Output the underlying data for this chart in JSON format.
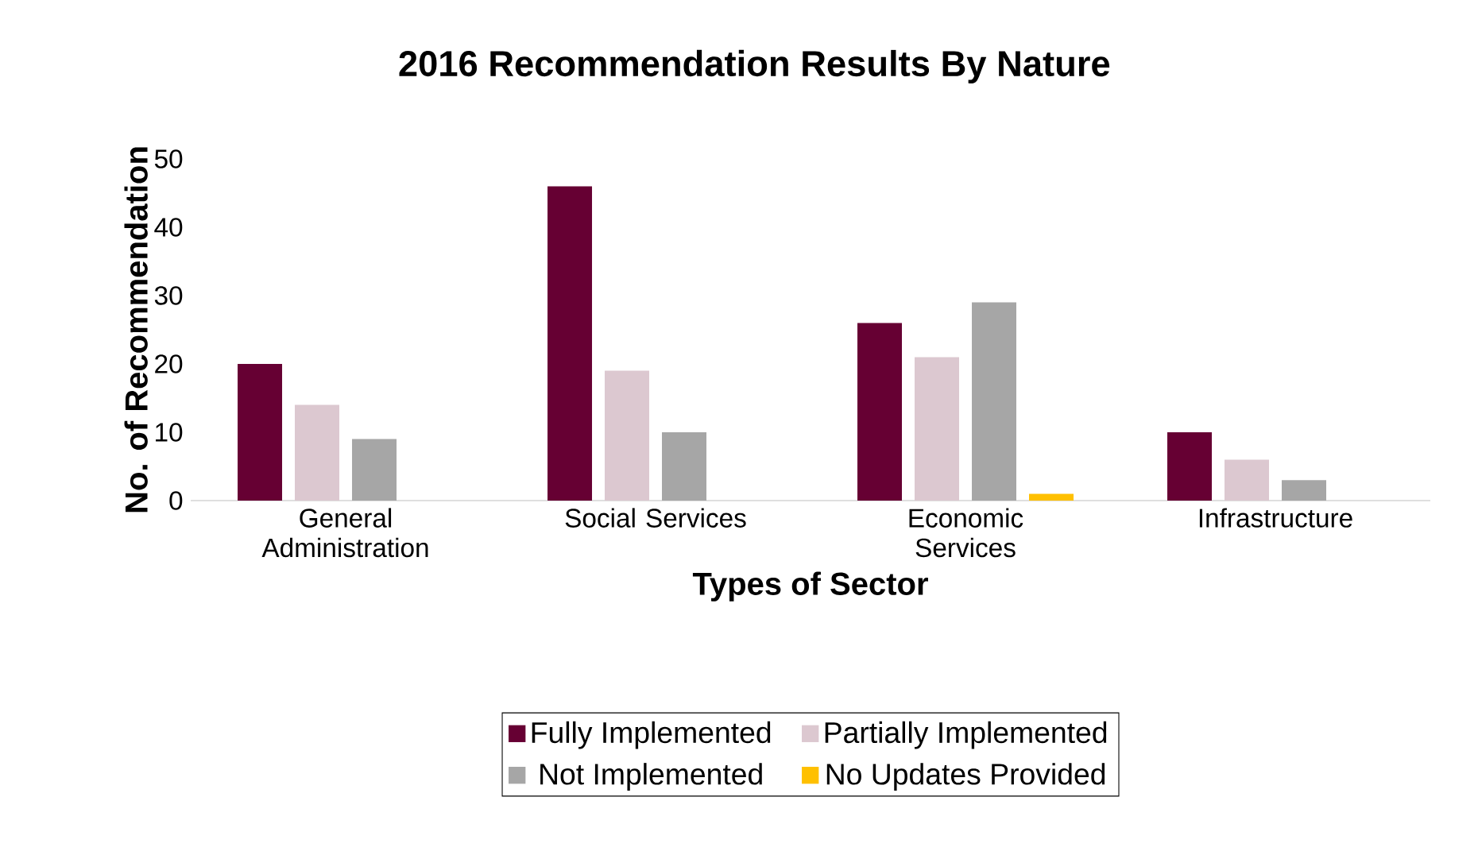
{
  "chart_data": {
    "type": "bar",
    "title": "2016 Recommendation Results By Nature",
    "xlabel": "Types of Sector",
    "ylabel": "No. of Recommendation",
    "categories": [
      "General Administration",
      "Social Services",
      "Economic Services",
      "Infrastructure"
    ],
    "series": [
      {
        "name": "Fully Implemented",
        "color": "#660033",
        "values": [
          20,
          46,
          26,
          10
        ]
      },
      {
        "name": "Partially Implemented",
        "color": "#dcc8d0",
        "values": [
          14,
          19,
          21,
          6
        ]
      },
      {
        "name": "Not Implemented",
        "color": "#a6a6a6",
        "values": [
          9,
          10,
          29,
          3
        ]
      },
      {
        "name": "No Updates Provided",
        "color": "#ffc000",
        "values": [
          0,
          0,
          1,
          0
        ]
      }
    ],
    "ylim": [
      0,
      50
    ],
    "yticks": [
      0,
      10,
      20,
      30,
      40,
      50
    ],
    "legend": "bottom"
  }
}
